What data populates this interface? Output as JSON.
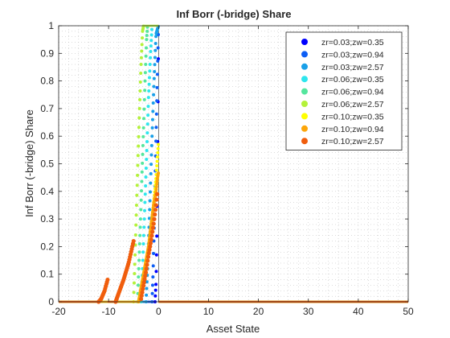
{
  "chart_data": {
    "type": "scatter",
    "title": "Inf Borr (-bridge) Share",
    "xlabel": "Asset State",
    "ylabel": "Inf Borr (-bridge) Share",
    "xlim": [
      -20,
      50
    ],
    "ylim": [
      0,
      1
    ],
    "xticks": [
      -20,
      -10,
      0,
      10,
      20,
      30,
      40,
      50
    ],
    "yticks": [
      0,
      0.1,
      0.2,
      0.3,
      0.4,
      0.5,
      0.6,
      0.7,
      0.8,
      0.9,
      1
    ],
    "xtick_labels": [
      "-20",
      "-10",
      "0",
      "10",
      "20",
      "30",
      "40",
      "50"
    ],
    "ytick_labels": [
      "0",
      "0.1",
      "0.2",
      "0.3",
      "0.4",
      "0.5",
      "0.6",
      "0.7",
      "0.8",
      "0.9",
      "1"
    ],
    "grid": "minor dotted",
    "legend_position": "top-right",
    "series": [
      {
        "name": "zr=0.03;zw=0.35",
        "color": "#0000ff",
        "marker_size": 2,
        "left_end": -20,
        "threshold": -0.7,
        "zero_x": -0.7,
        "y_at_x": [
          [
            -0.7,
            0
          ],
          [
            -0.5,
            0.07
          ],
          [
            -0.35,
            0.22
          ],
          [
            -0.25,
            0.4
          ],
          [
            -0.15,
            0.6
          ],
          [
            -0.05,
            0.85
          ],
          [
            0,
            1
          ]
        ],
        "right_end": 50
      },
      {
        "name": "zr=0.03;zw=0.94",
        "color": "#0d5ef5",
        "marker_size": 2,
        "left_end": -20,
        "threshold": -1.3,
        "zero_x": -1.3,
        "y_at_x": [
          [
            -1.3,
            0
          ],
          [
            -1.1,
            0.1
          ],
          [
            -0.9,
            0.25
          ],
          [
            -0.7,
            0.42
          ],
          [
            -0.5,
            0.6
          ],
          [
            -0.25,
            0.8
          ],
          [
            0,
            1
          ]
        ],
        "right_end": 50
      },
      {
        "name": "zr=0.03;zw=2.57",
        "color": "#1aa0e8",
        "marker_size": 2,
        "left_end": -20,
        "threshold": -2.5,
        "zero_x": -2.5,
        "y_at_x": [
          [
            -2.5,
            0
          ],
          [
            -2.2,
            0.12
          ],
          [
            -1.9,
            0.27
          ],
          [
            -1.6,
            0.43
          ],
          [
            -1.3,
            0.6
          ],
          [
            -0.9,
            0.8
          ],
          [
            -0.5,
            0.97
          ],
          [
            0,
            1
          ]
        ],
        "right_end": 50
      },
      {
        "name": "zr=0.06;zw=0.35",
        "color": "#2ee6ee",
        "marker_size": 2,
        "left_end": -20,
        "threshold": -3.5,
        "zero_x": -3.5,
        "y_at_x": [
          [
            -3.5,
            0
          ],
          [
            -3.2,
            0.12
          ],
          [
            -2.9,
            0.27
          ],
          [
            -2.6,
            0.42
          ],
          [
            -2.3,
            0.58
          ],
          [
            -2.0,
            0.74
          ],
          [
            -1.6,
            0.9
          ],
          [
            -1.3,
            1
          ]
        ],
        "right_end": 50
      },
      {
        "name": "zr=0.06;zw=0.94",
        "color": "#55e69e",
        "marker_size": 2,
        "left_end": -20,
        "threshold": -4.2,
        "zero_x": -4.2,
        "y_at_x": [
          [
            -4.2,
            0
          ],
          [
            -3.9,
            0.15
          ],
          [
            -3.6,
            0.3
          ],
          [
            -3.3,
            0.47
          ],
          [
            -3.0,
            0.63
          ],
          [
            -2.7,
            0.8
          ],
          [
            -2.4,
            0.95
          ],
          [
            -2.2,
            1
          ]
        ],
        "right_end": 50
      },
      {
        "name": "zr=0.06;zw=2.57",
        "color": "#b4f23a",
        "marker_size": 2,
        "left_end": -20,
        "threshold": -5.0,
        "zero_x": -5.0,
        "y_at_x": [
          [
            -5.0,
            0
          ],
          [
            -4.7,
            0.17
          ],
          [
            -4.4,
            0.35
          ],
          [
            -4.1,
            0.53
          ],
          [
            -3.8,
            0.7
          ],
          [
            -3.5,
            0.86
          ],
          [
            -3.2,
            0.98
          ],
          [
            -3.0,
            1
          ]
        ],
        "right_end": 50
      },
      {
        "name": "zr=0.10;zw=0.35",
        "color": "#ffff00",
        "marker_size": 2,
        "left_end": -20,
        "threshold": -4.0,
        "zero_x": -4.0,
        "y_at_x": [
          [
            -4.0,
            0
          ],
          [
            -3.5,
            0.05
          ],
          [
            -3.0,
            0.1
          ],
          [
            -2.5,
            0.15
          ],
          [
            -2.0,
            0.2
          ],
          [
            -1.5,
            0.27
          ],
          [
            -1.0,
            0.35
          ],
          [
            -0.5,
            0.45
          ],
          [
            -0.2,
            0.53
          ],
          [
            0,
            0.58
          ]
        ],
        "right_end": 50
      },
      {
        "name": "zr=0.10;zw=0.94",
        "color": "#fca60a",
        "marker_size": 2,
        "left_end": -20,
        "threshold": -4.0,
        "zero_x": -4.0,
        "y_at_x": [
          [
            -4.0,
            0
          ],
          [
            -3.5,
            0.05
          ],
          [
            -3.0,
            0.1
          ],
          [
            -2.5,
            0.15
          ],
          [
            -2.0,
            0.2
          ],
          [
            -1.5,
            0.28
          ],
          [
            -1.0,
            0.35
          ],
          [
            -0.5,
            0.4
          ],
          [
            -0.2,
            0.45
          ],
          [
            0,
            0.47
          ]
        ],
        "right_end": 50
      },
      {
        "name": "zr=0.10;zw=2.57",
        "color": "#f05d0d",
        "marker_size": 2.6,
        "left_end": -20,
        "threshold": -8.6,
        "zero_x": -12.0,
        "y_at_x": [
          [
            -12.0,
            0
          ],
          [
            -11.5,
            0.01
          ],
          [
            -10.8,
            0.04
          ],
          [
            -10.2,
            0.08
          ]
        ],
        "y_at_x_2": [
          [
            -8.6,
            0
          ],
          [
            -8.0,
            0.03
          ],
          [
            -7.0,
            0.08
          ],
          [
            -6.0,
            0.14
          ],
          [
            -5.0,
            0.22
          ]
        ],
        "y_at_x_3": [
          [
            -3.5,
            0.01
          ],
          [
            -3.0,
            0.06
          ],
          [
            -2.5,
            0.11
          ],
          [
            -2.0,
            0.17
          ],
          [
            -1.5,
            0.22
          ],
          [
            -1.0,
            0.28
          ],
          [
            -0.5,
            0.35
          ],
          [
            -0.2,
            0.4
          ]
        ],
        "right_end": 50
      }
    ]
  }
}
